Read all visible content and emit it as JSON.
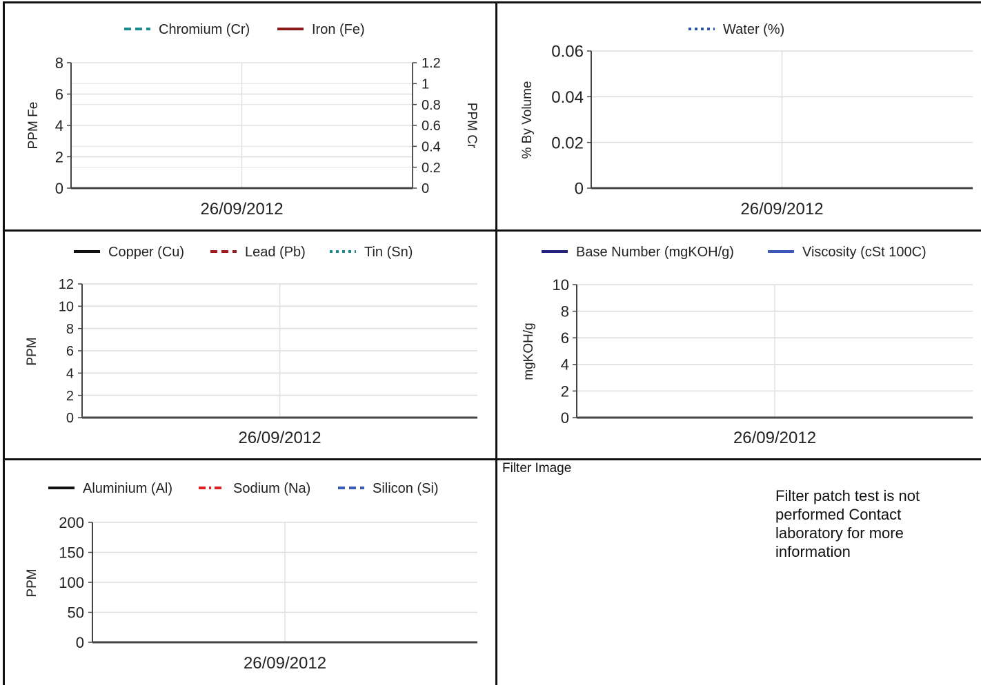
{
  "chart_data": [
    {
      "type": "line",
      "legend": [
        {
          "label": "Chromium (Cr)",
          "color": "#1a8a8f",
          "dash": "dashed"
        },
        {
          "label": "Iron (Fe)",
          "color": "#8b1a1a",
          "dash": "solid"
        }
      ],
      "ylabel": "PPM Fe",
      "y2label": "PPM Cr",
      "ylim": [
        0,
        8
      ],
      "y2lim": [
        0,
        1.2
      ],
      "yticks": [
        "0",
        "2",
        "4",
        "6",
        "8"
      ],
      "y2ticks": [
        "0",
        "0.2",
        "0.4",
        "0.6",
        "0.8",
        "1",
        "1.2"
      ],
      "x": [
        "26/09/2012"
      ],
      "grid": true,
      "legend_position": "top"
    },
    {
      "type": "line",
      "legend": [
        {
          "label": "Water (%)",
          "color": "#2b56a8",
          "dash": "dotted"
        }
      ],
      "ylabel": "% By Volume",
      "ylim": [
        0,
        0.06
      ],
      "yticks": [
        "0",
        "0.02",
        "0.04",
        "0.06"
      ],
      "x": [
        "26/09/2012"
      ],
      "grid": true,
      "legend_position": "top"
    },
    {
      "type": "line",
      "legend": [
        {
          "label": "Copper (Cu)",
          "color": "#111111",
          "dash": "solid"
        },
        {
          "label": "Lead (Pb)",
          "color": "#a11d1d",
          "dash": "dashed"
        },
        {
          "label": "Tin (Sn)",
          "color": "#1a8a8f",
          "dash": "dotted"
        }
      ],
      "ylabel": "PPM",
      "ylim": [
        0,
        12
      ],
      "yticks": [
        "0",
        "2",
        "4",
        "6",
        "8",
        "10",
        "12"
      ],
      "x": [
        "26/09/2012"
      ],
      "grid": true,
      "legend_position": "top"
    },
    {
      "type": "line",
      "legend": [
        {
          "label": "Base Number (mgKOH/g)",
          "color": "#23237a",
          "dash": "solid"
        },
        {
          "label": "Viscosity (cSt 100C)",
          "color": "#3a5bb5",
          "dash": "solid"
        }
      ],
      "ylabel": "mgKOH/g",
      "ylim": [
        0,
        10
      ],
      "yticks": [
        "0",
        "2",
        "4",
        "6",
        "8",
        "10"
      ],
      "x": [
        "26/09/2012"
      ],
      "grid": true,
      "legend_position": "top"
    },
    {
      "type": "line",
      "legend": [
        {
          "label": "Aluminium (Al)",
          "color": "#111111",
          "dash": "solid"
        },
        {
          "label": "Sodium (Na)",
          "color": "#e02020",
          "dash": "dashdot"
        },
        {
          "label": "Silicon (Si)",
          "color": "#3a5bb5",
          "dash": "dashed"
        }
      ],
      "ylabel": "PPM",
      "ylim": [
        0,
        200
      ],
      "yticks": [
        "0",
        "50",
        "100",
        "150",
        "200"
      ],
      "x": [
        "26/09/2012"
      ],
      "grid": true,
      "legend_position": "top"
    }
  ],
  "filter": {
    "title": "Filter Image",
    "message": "Filter patch test is not performed Contact laboratory for more information"
  }
}
